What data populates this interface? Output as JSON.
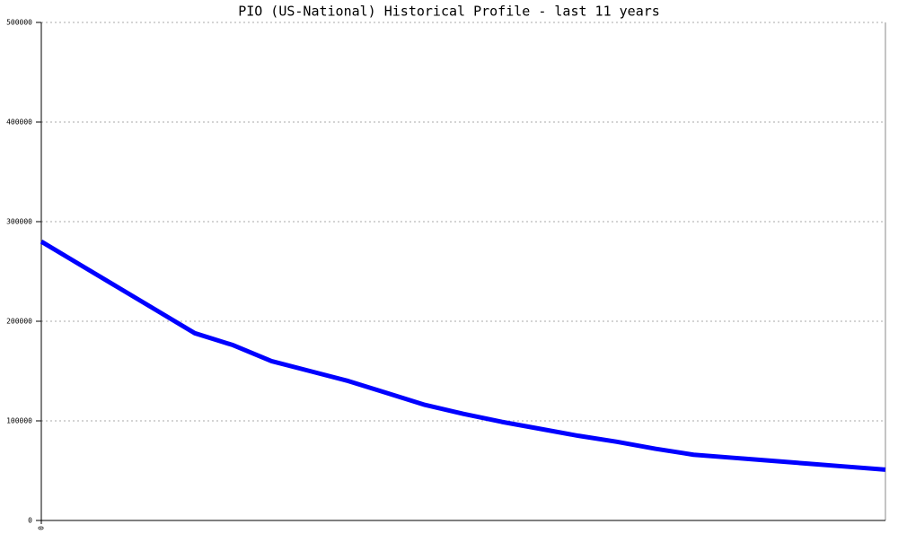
{
  "chart_data": {
    "type": "line",
    "title": "PIO (US-National) Historical Profile - last 11 years",
    "x": [
      0,
      1,
      2,
      3,
      4,
      5,
      6,
      7,
      8,
      9,
      10,
      11,
      12,
      13,
      14,
      15,
      16,
      17,
      18,
      19,
      20,
      21,
      22
    ],
    "values": [
      280000,
      257000,
      234000,
      211000,
      188000,
      176000,
      160000,
      150000,
      140000,
      128000,
      116000,
      107000,
      99000,
      92000,
      85000,
      79000,
      72000,
      66000,
      63000,
      60000,
      57000,
      54000,
      51000
    ],
    "color": "#0000ff",
    "xlim": [
      0,
      22
    ],
    "xticks": [
      0
    ],
    "ylim": [
      0,
      500000
    ],
    "yticks": [
      0,
      100000,
      200000,
      300000,
      400000,
      500000
    ],
    "grid": true
  }
}
